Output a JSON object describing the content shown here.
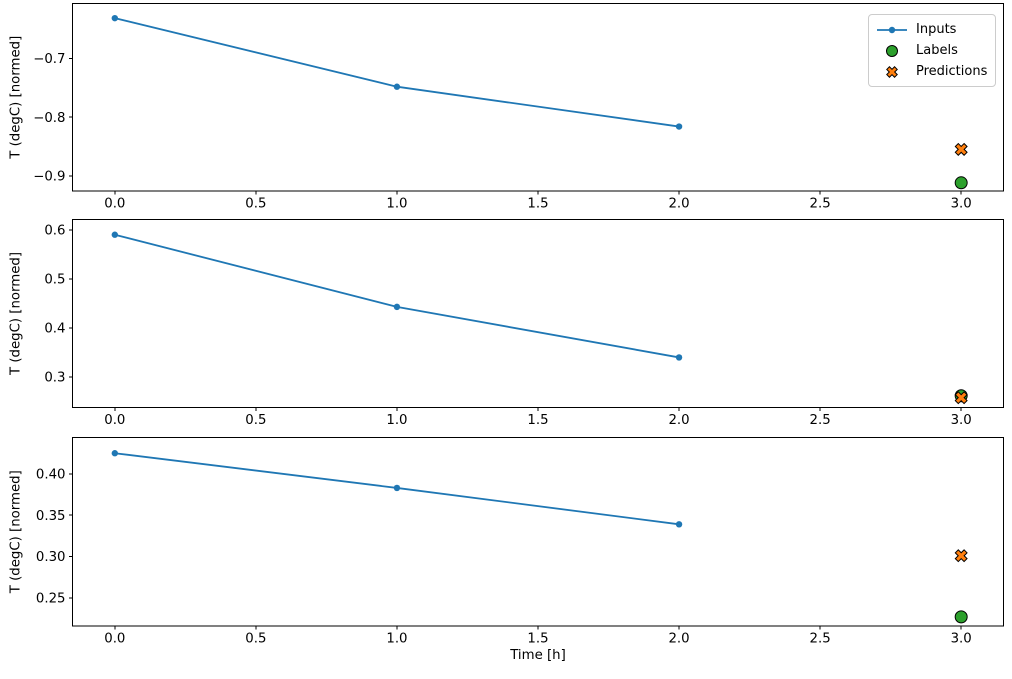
{
  "figure": {
    "background": "#ffffff",
    "axes_color": "#000000",
    "text_color": "#000000",
    "xlabel": "Time [h]",
    "ylabel": "T (degC) [normed]"
  },
  "legend": {
    "location": "upper-right-of-first-subplot",
    "items": [
      {
        "label": "Inputs",
        "marker": "line-with-dot",
        "color": "#1f77b4"
      },
      {
        "label": "Labels",
        "marker": "circle",
        "color": "#2ca02c",
        "edge_color": "#000000"
      },
      {
        "label": "Predictions",
        "marker": "thick-x",
        "color": "#ff7f0e",
        "edge_color": "#000000"
      }
    ]
  },
  "chart_data": [
    {
      "type": "line",
      "title": "",
      "xlabel": "",
      "ylabel": "T (degC) [normed]",
      "xlim": [
        -0.15,
        3.15
      ],
      "ylim": [
        -0.926,
        -0.606
      ],
      "xticks": [
        0.0,
        0.5,
        1.0,
        1.5,
        2.0,
        2.5,
        3.0
      ],
      "xtick_labels": [
        "0.0",
        "0.5",
        "1.0",
        "1.5",
        "2.0",
        "2.5",
        "3.0"
      ],
      "yticks": [
        -0.7,
        -0.8,
        -0.9
      ],
      "ytick_labels": [
        "−0.7",
        "−0.8",
        "−0.9"
      ],
      "grid": false,
      "series": [
        {
          "name": "Inputs",
          "kind": "line",
          "color": "#1f77b4",
          "x": [
            0,
            1,
            2
          ],
          "y": [
            -0.631,
            -0.748,
            -0.816
          ]
        },
        {
          "name": "Labels",
          "kind": "scatter",
          "marker": "circle",
          "color": "#2ca02c",
          "edge_color": "#000000",
          "x": [
            3
          ],
          "y": [
            -0.912
          ]
        },
        {
          "name": "Predictions",
          "kind": "scatter",
          "marker": "x",
          "color": "#ff7f0e",
          "edge_color": "#000000",
          "x": [
            3
          ],
          "y": [
            -0.855
          ]
        }
      ]
    },
    {
      "type": "line",
      "title": "",
      "xlabel": "",
      "ylabel": "T (degC) [normed]",
      "xlim": [
        -0.15,
        3.15
      ],
      "ylim": [
        0.238,
        0.621
      ],
      "xticks": [
        0.0,
        0.5,
        1.0,
        1.5,
        2.0,
        2.5,
        3.0
      ],
      "xtick_labels": [
        "0.0",
        "0.5",
        "1.0",
        "1.5",
        "2.0",
        "2.5",
        "3.0"
      ],
      "yticks": [
        0.6,
        0.5,
        0.4,
        0.3
      ],
      "ytick_labels": [
        "0.6",
        "0.5",
        "0.4",
        "0.3"
      ],
      "grid": false,
      "series": [
        {
          "name": "Inputs",
          "kind": "line",
          "color": "#1f77b4",
          "x": [
            0,
            1,
            2
          ],
          "y": [
            0.59,
            0.443,
            0.34
          ]
        },
        {
          "name": "Labels",
          "kind": "scatter",
          "marker": "circle",
          "color": "#2ca02c",
          "edge_color": "#000000",
          "x": [
            3
          ],
          "y": [
            0.262
          ]
        },
        {
          "name": "Predictions",
          "kind": "scatter",
          "marker": "x",
          "color": "#ff7f0e",
          "edge_color": "#000000",
          "x": [
            3
          ],
          "y": [
            0.258
          ]
        }
      ]
    },
    {
      "type": "line",
      "title": "",
      "xlabel": "Time [h]",
      "ylabel": "T (degC) [normed]",
      "xlim": [
        -0.15,
        3.15
      ],
      "ylim": [
        0.216,
        0.444
      ],
      "xticks": [
        0.0,
        0.5,
        1.0,
        1.5,
        2.0,
        2.5,
        3.0
      ],
      "xtick_labels": [
        "0.0",
        "0.5",
        "1.0",
        "1.5",
        "2.0",
        "2.5",
        "3.0"
      ],
      "yticks": [
        0.4,
        0.35,
        0.3,
        0.25
      ],
      "ytick_labels": [
        "0.40",
        "0.35",
        "0.30",
        "0.25"
      ],
      "grid": false,
      "series": [
        {
          "name": "Inputs",
          "kind": "line",
          "color": "#1f77b4",
          "x": [
            0,
            1,
            2
          ],
          "y": [
            0.425,
            0.383,
            0.339
          ]
        },
        {
          "name": "Labels",
          "kind": "scatter",
          "marker": "circle",
          "color": "#2ca02c",
          "edge_color": "#000000",
          "x": [
            3
          ],
          "y": [
            0.227
          ]
        },
        {
          "name": "Predictions",
          "kind": "scatter",
          "marker": "x",
          "color": "#ff7f0e",
          "edge_color": "#000000",
          "x": [
            3
          ],
          "y": [
            0.301
          ]
        }
      ]
    }
  ]
}
